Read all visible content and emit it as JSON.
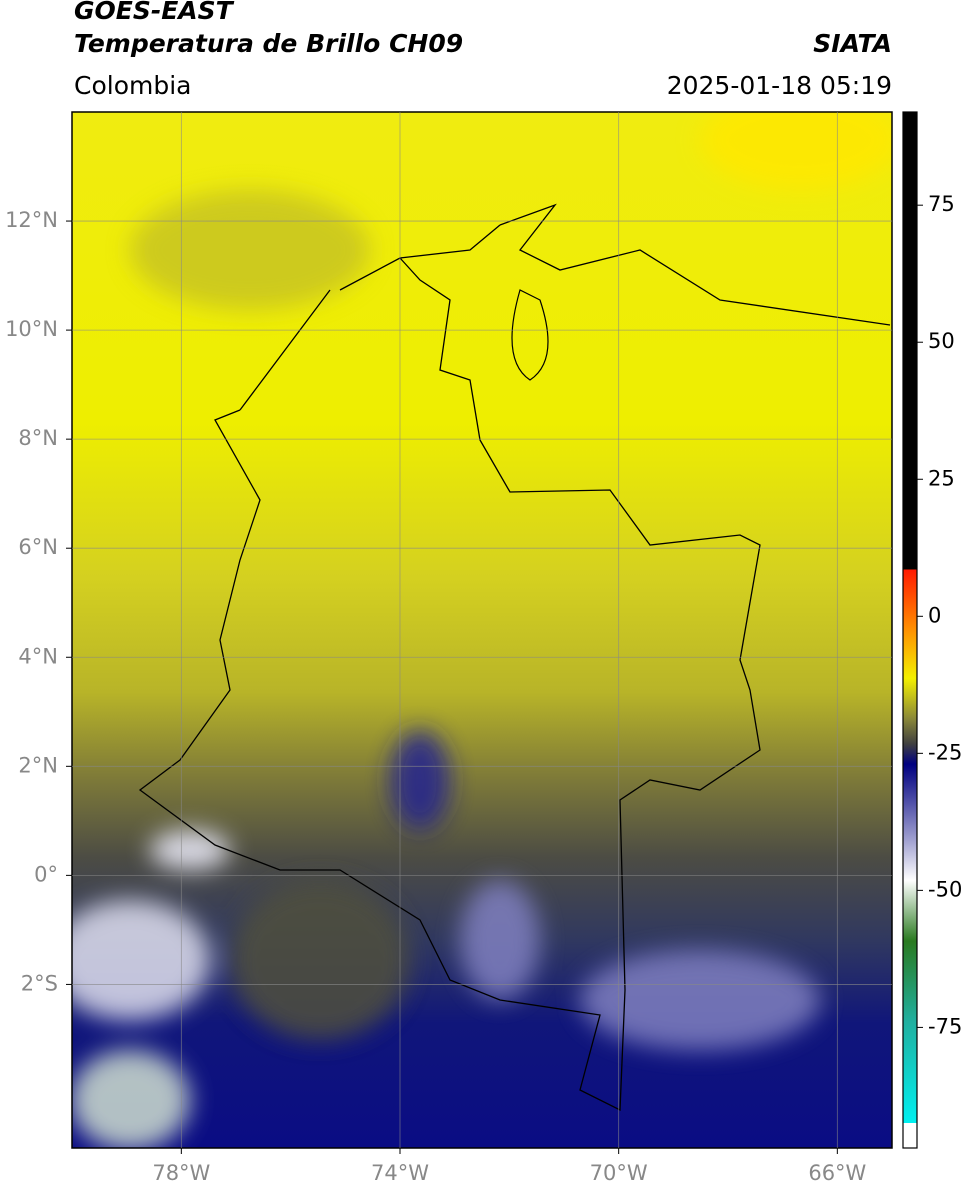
{
  "header": {
    "satellite": "GOES-EAST",
    "product": "Temperatura de Brillo CH09",
    "source": "SIATA",
    "region": "Colombia",
    "datetime": "2025-01-18 05:19"
  },
  "map": {
    "lon_range": [
      -80,
      -65
    ],
    "lat_range": [
      -5,
      14
    ],
    "lat_ticks": [
      {
        "value": 12,
        "label": "12°N"
      },
      {
        "value": 10,
        "label": "10°N"
      },
      {
        "value": 8,
        "label": "8°N"
      },
      {
        "value": 6,
        "label": "6°N"
      },
      {
        "value": 4,
        "label": "4°N"
      },
      {
        "value": 2,
        "label": "2°N"
      },
      {
        "value": 0,
        "label": "0°"
      },
      {
        "value": -2,
        "label": "2°S"
      }
    ],
    "lon_ticks": [
      {
        "value": -78,
        "label": "78°W"
      },
      {
        "value": -74,
        "label": "74°W"
      },
      {
        "value": -70,
        "label": "70°W"
      },
      {
        "value": -66,
        "label": "66°W"
      }
    ]
  },
  "colorbar": {
    "range": [
      -97,
      92
    ],
    "ticks": [
      75,
      50,
      25,
      0,
      -25,
      -50,
      -75
    ]
  }
}
